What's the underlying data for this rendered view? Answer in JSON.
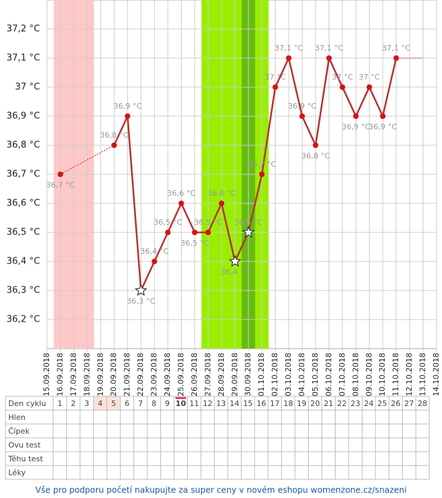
{
  "chart_data": {
    "type": "line",
    "categories": [
      "15.09.2018",
      "16.09.2018",
      "17.09.2018",
      "18.09.2018",
      "19.09.2018",
      "20.09.2018",
      "21.09.2018",
      "22.09.2018",
      "23.09.2018",
      "24.09.2018",
      "25.09.2018",
      "26.09.2018",
      "27.09.2018",
      "28.09.2018",
      "29.09.2018",
      "30.09.2018",
      "01.10.2018",
      "02.10.2018",
      "03.10.2018",
      "04.10.2018",
      "05.10.2018",
      "06.10.2018",
      "07.10.2018",
      "08.10.2018",
      "09.10.2018",
      "10.10.2018",
      "11.10.2018",
      "12.10.2018",
      "13.10.2018",
      "14.10.2018"
    ],
    "values": [
      null,
      36.7,
      null,
      null,
      null,
      36.8,
      36.9,
      36.3,
      36.4,
      36.5,
      36.6,
      36.5,
      36.5,
      36.6,
      36.4,
      36.5,
      36.7,
      37.0,
      37.1,
      36.9,
      36.8,
      37.1,
      37.0,
      36.9,
      37.0,
      36.9,
      37.1,
      null,
      null,
      null
    ],
    "value_labels": [
      null,
      "36,7 °C",
      null,
      null,
      null,
      "36,8 °C",
      "36,9 °C",
      "36,3 °C",
      "36,4 °C",
      "36,5 °C",
      "36,6 °C",
      "36,5 °C",
      "36,5 °C",
      "36,6 °C",
      "36,4 °C",
      "36,5 °C",
      "36,7 °C",
      "37 °C",
      "37,1 °C",
      "36,9 °C",
      "36,8 °C",
      "37,1 °C",
      "37 °C",
      "36,9 °C",
      "37 °C",
      "36,9 °C",
      "37,1 °C",
      null,
      null,
      null
    ],
    "color": "#b83232",
    "point_color": "#d41414",
    "star_dates": [
      "22.09.2018",
      "29.09.2018",
      "30.09.2018"
    ],
    "bands": [
      {
        "from": "16.09.2018",
        "to": "18.09.2018",
        "color": "#ffc8c8"
      },
      {
        "from": "27.09.2018",
        "to": "01.10.2018",
        "color": "#99ee00"
      },
      {
        "from": "30.09.2018",
        "to": "30.09.2018",
        "color": "#66bb11"
      }
    ],
    "ylim": [
      36.1,
      37.3
    ],
    "yticks": [
      {
        "value": 36.2,
        "label": "36,2 °C"
      },
      {
        "value": 36.3,
        "label": "36,3 °C"
      },
      {
        "value": 36.4,
        "label": "36,4 °C"
      },
      {
        "value": 36.5,
        "label": "36,5 °C"
      },
      {
        "value": 36.6,
        "label": "36,6 °C"
      },
      {
        "value": 36.7,
        "label": "36,7 °C"
      },
      {
        "value": 36.8,
        "label": "36,8 °C"
      },
      {
        "value": 36.9,
        "label": "36,9 °C"
      },
      {
        "value": 37.0,
        "label": "37 °C"
      },
      {
        "value": 37.1,
        "label": "37,1 °C"
      },
      {
        "value": 37.2,
        "label": "37,2 °C"
      }
    ],
    "grid": true
  },
  "cycle_table": {
    "row_labels": [
      "Den cyklu",
      "Hlen",
      "Čípek",
      "Ovu test",
      "Těhu test",
      "Léky"
    ],
    "days": [
      1,
      2,
      3,
      4,
      5,
      6,
      7,
      8,
      9,
      10,
      11,
      12,
      13,
      14,
      15,
      16,
      17,
      18,
      19,
      20,
      21,
      22,
      23,
      24,
      25,
      26,
      27,
      28
    ],
    "highlighted_days": [
      4,
      5
    ],
    "today": 10
  },
  "footer": "Vše pro podporu početí nakupujte za super ceny v novém eshopu womenzone.cz/snazeni"
}
